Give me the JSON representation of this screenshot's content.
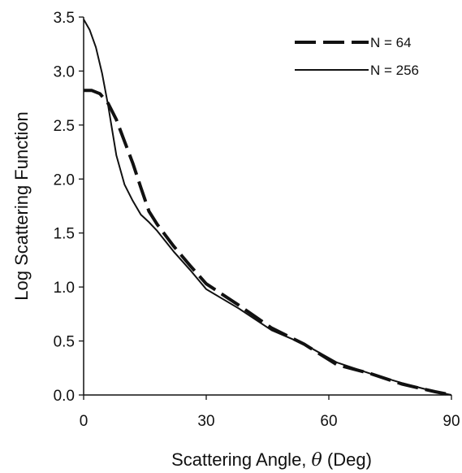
{
  "chart_data": {
    "type": "line",
    "title": "",
    "xlabel_parts": [
      "Scattering Angle, ",
      "θ",
      " (Deg)"
    ],
    "ylabel": "Log Scattering Function",
    "xlim": [
      0,
      90
    ],
    "ylim": [
      0.0,
      3.5
    ],
    "xticks": [
      0,
      30,
      60,
      90
    ],
    "xtick_labels": [
      "0",
      "30",
      "60",
      "90"
    ],
    "yticks": [
      0.0,
      0.5,
      1.0,
      1.5,
      2.0,
      2.5,
      3.0,
      3.5
    ],
    "ytick_labels": [
      "0.0",
      "0.5",
      "1.0",
      "1.5",
      "2.0",
      "2.5",
      "3.0",
      "3.5"
    ],
    "grid": false,
    "legend_position": "top-right",
    "series": [
      {
        "name": "N = 64",
        "style": "dashed",
        "color": "#111111",
        "x": [
          0,
          2,
          4,
          6,
          8,
          10,
          12,
          14,
          16,
          18,
          22,
          26,
          30,
          38,
          46,
          54,
          62,
          70,
          78,
          86,
          90
        ],
        "y": [
          2.82,
          2.82,
          2.79,
          2.7,
          2.55,
          2.35,
          2.15,
          1.92,
          1.7,
          1.58,
          1.38,
          1.2,
          1.03,
          0.83,
          0.62,
          0.47,
          0.28,
          0.2,
          0.1,
          0.03,
          0.0
        ]
      },
      {
        "name": "N = 256",
        "style": "solid",
        "color": "#111111",
        "x": [
          0,
          1.5,
          3,
          4.5,
          6,
          8,
          10,
          12,
          14,
          16,
          18,
          22,
          26,
          30,
          38,
          46,
          54,
          62,
          70,
          78,
          86,
          90
        ],
        "y": [
          3.48,
          3.38,
          3.22,
          2.98,
          2.68,
          2.22,
          1.95,
          1.8,
          1.67,
          1.6,
          1.52,
          1.33,
          1.16,
          0.98,
          0.8,
          0.6,
          0.47,
          0.3,
          0.2,
          0.11,
          0.03,
          0.0
        ]
      }
    ]
  }
}
